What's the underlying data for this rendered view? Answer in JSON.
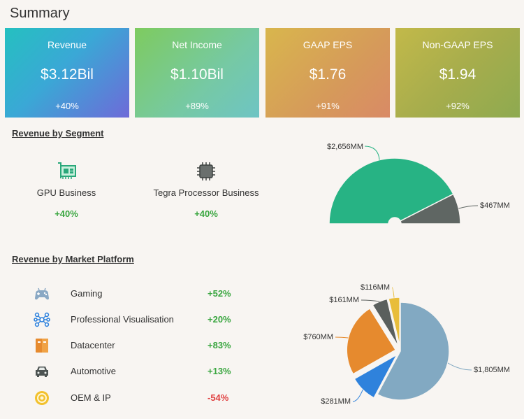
{
  "page": {
    "title": "Summary"
  },
  "cards": [
    {
      "label": "Revenue",
      "value": "$3.12Bil",
      "change": "+40%"
    },
    {
      "label": "Net Income",
      "value": "$1.10Bil",
      "change": "+89%"
    },
    {
      "label": "GAAP EPS",
      "value": "$1.76",
      "change": "+91%"
    },
    {
      "label": "Non-GAAP EPS",
      "value": "$1.94",
      "change": "+92%"
    }
  ],
  "segments": {
    "title": "Revenue by Segment",
    "items": [
      {
        "name": "GPU Business",
        "change": "+40%",
        "icon": "gpu-card-icon"
      },
      {
        "name": "Tegra Processor Business",
        "change": "+40%",
        "icon": "processor-chip-icon"
      }
    ]
  },
  "platforms": {
    "title": "Revenue by Market Platform",
    "items": [
      {
        "name": "Gaming",
        "change": "+52%",
        "icon": "gamepad-icon",
        "trend": "pos"
      },
      {
        "name": "Professional Visualisation",
        "change": "+20%",
        "icon": "network-nodes-icon",
        "trend": "pos"
      },
      {
        "name": "Datacenter",
        "change": "+83%",
        "icon": "server-rack-icon",
        "trend": "pos"
      },
      {
        "name": "Automotive",
        "change": "+13%",
        "icon": "car-icon",
        "trend": "pos"
      },
      {
        "name": "OEM & IP",
        "change": "-54%",
        "icon": "target-ring-icon",
        "trend": "neg"
      }
    ]
  },
  "colors": {
    "positive": "#3aa640",
    "negative": "#e04040"
  },
  "chart_data": [
    {
      "type": "pie",
      "variant": "half-donut",
      "title": "Revenue by Segment",
      "slices": [
        {
          "name": "GPU Business",
          "value": 2656,
          "label": "$2,656MM",
          "color": "#27b384"
        },
        {
          "name": "Tegra Processor Business",
          "value": 467,
          "label": "$467MM",
          "color": "#5f6663"
        }
      ]
    },
    {
      "type": "pie",
      "title": "Revenue by Market Platform",
      "slices": [
        {
          "name": "Gaming",
          "value": 1805,
          "label": "$1,805MM",
          "color": "#82a9c2"
        },
        {
          "name": "Professional Visualisation",
          "value": 281,
          "label": "$281MM",
          "color": "#2f82dc"
        },
        {
          "name": "Datacenter",
          "value": 760,
          "label": "$760MM",
          "color": "#e68a2e"
        },
        {
          "name": "Automotive",
          "value": 161,
          "label": "$161MM",
          "color": "#5a5f5d"
        },
        {
          "name": "OEM & IP",
          "value": 116,
          "label": "$116MM",
          "color": "#e8bd3a"
        }
      ]
    }
  ]
}
